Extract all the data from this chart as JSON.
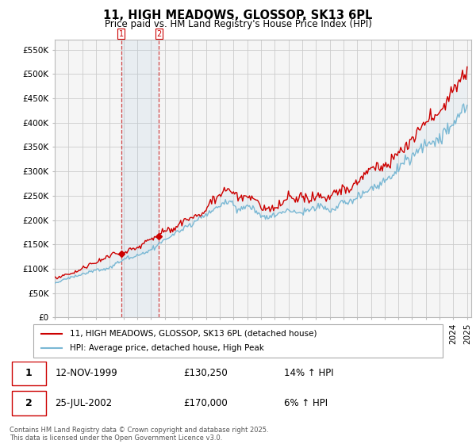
{
  "title": "11, HIGH MEADOWS, GLOSSOP, SK13 6PL",
  "subtitle": "Price paid vs. HM Land Registry's House Price Index (HPI)",
  "line1_color": "#cc0000",
  "line2_color": "#7ab8d4",
  "fill_color": "#c8dce8",
  "marker_color": "#cc0000",
  "grid_color": "#cccccc",
  "bg_color": "#f5f5f5",
  "sale1_year": 1999.87,
  "sale1_price": 130250,
  "sale1_label": "1",
  "sale1_date": "12-NOV-1999",
  "sale1_pct": "14% ↑ HPI",
  "sale2_year": 2002.56,
  "sale2_price": 170000,
  "sale2_label": "2",
  "sale2_date": "25-JUL-2002",
  "sale2_pct": "6% ↑ HPI",
  "legend1": "11, HIGH MEADOWS, GLOSSOP, SK13 6PL (detached house)",
  "legend2": "HPI: Average price, detached house, High Peak",
  "footer": "Contains HM Land Registry data © Crown copyright and database right 2025.\nThis data is licensed under the Open Government Licence v3.0.",
  "ylim_max": 570000,
  "xstart": 1995,
  "xend": 2025
}
